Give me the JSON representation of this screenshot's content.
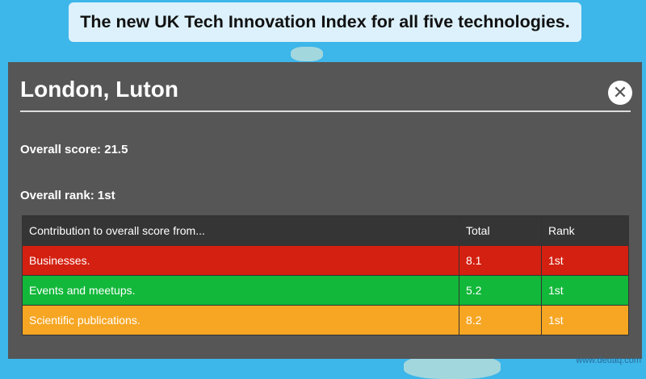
{
  "header": {
    "title": "The new UK Tech Innovation Index for all five technologies."
  },
  "panel": {
    "title": "London, Luton",
    "overall_score": "Overall score: 21.5",
    "overall_rank": "Overall rank: 1st"
  },
  "table": {
    "columns": [
      "Contribution to overall score from...",
      "Total",
      "Rank"
    ],
    "rows": [
      [
        "Businesses.",
        "8.1",
        "1st"
      ],
      [
        "Events and meetups.",
        "5.2",
        "1st"
      ],
      [
        "Scientific publications.",
        "8.2",
        "1st"
      ]
    ]
  },
  "watermark": "www.deuaq.com"
}
